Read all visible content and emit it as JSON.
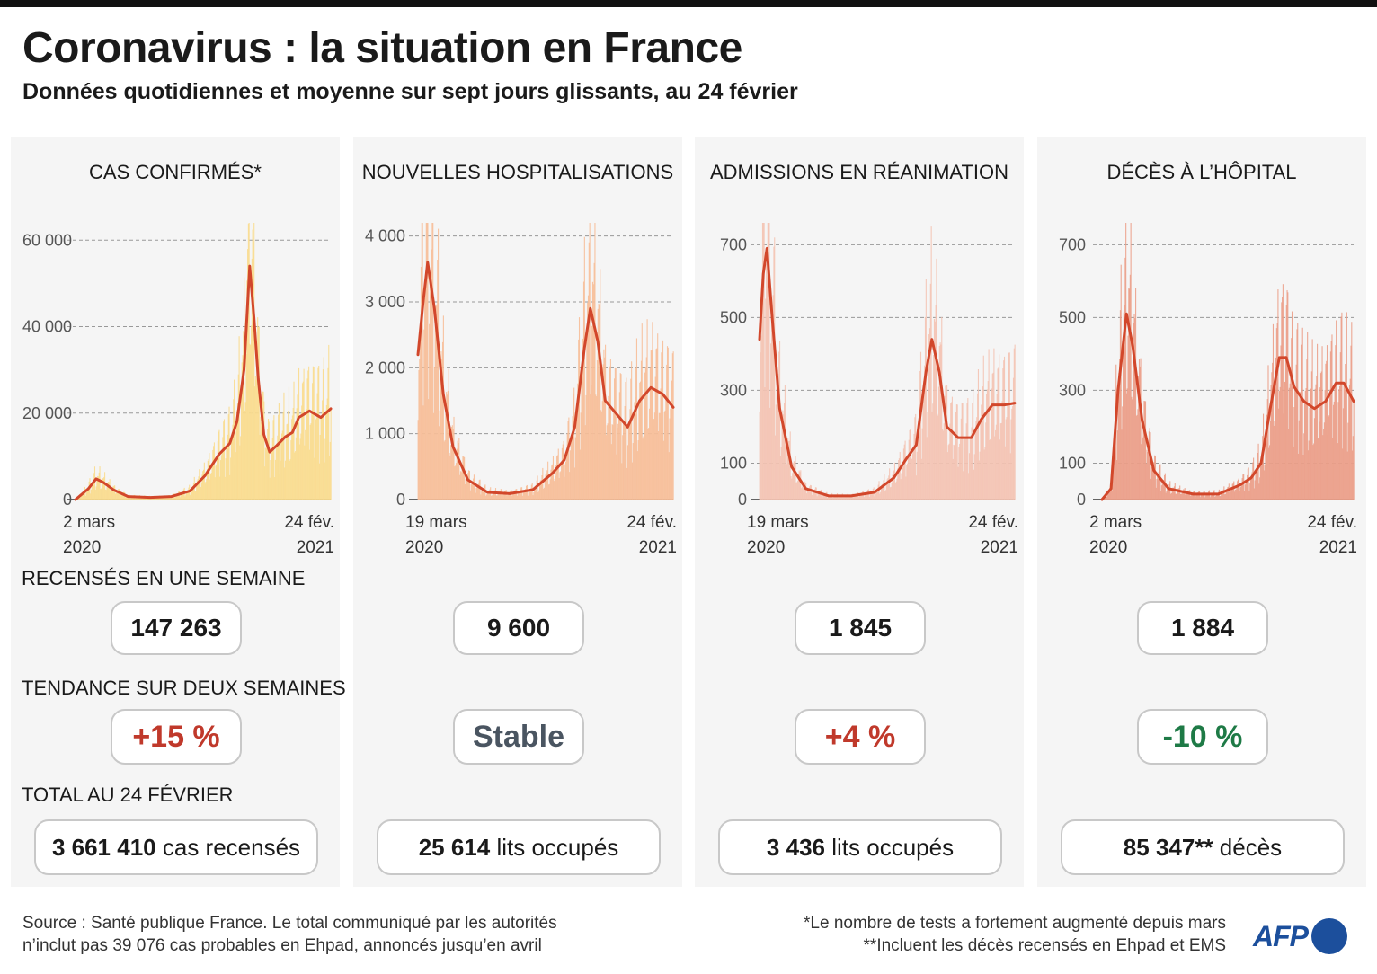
{
  "title": "Coronavirus : la situation en France",
  "subtitle": "Données quotidiennes et moyenne sur sept jours glissants, au 24 février",
  "labels": {
    "weekly": "RECENSÉS EN UNE SEMAINE",
    "trend": "TENDANCE SUR DEUX SEMAINES",
    "total": "TOTAL AU 24 FÉVRIER"
  },
  "colors": {
    "line": "#d2472b",
    "up": "#c0392b",
    "stable": "#4a5561",
    "down": "#1e7a46"
  },
  "panels": [
    {
      "title": "CAS CONFIRMÉS*",
      "weekly": "147 263",
      "trend": "+15 %",
      "trend_type": "up",
      "total_value": "3 661 410",
      "total_unit": "cas recensés",
      "start_date": [
        "2 mars",
        "2020"
      ],
      "end_date": [
        "24 fév.",
        "2021"
      ]
    },
    {
      "title": "NOUVELLES HOSPITALISATIONS",
      "weekly": "9 600",
      "trend": "Stable",
      "trend_type": "stable",
      "total_value": "25 614",
      "total_unit": "lits occupés",
      "start_date": [
        "19 mars",
        "2020"
      ],
      "end_date": [
        "24 fév.",
        "2021"
      ]
    },
    {
      "title": "ADMISSIONS EN RÉANIMATION",
      "weekly": "1 845",
      "trend": "+4 %",
      "trend_type": "up",
      "total_value": "3 436",
      "total_unit": "lits occupés",
      "start_date": [
        "19 mars",
        "2020"
      ],
      "end_date": [
        "24 fév.",
        "2021"
      ]
    },
    {
      "title": "DÉCÈS À L’HÔPITAL",
      "weekly": "1 884",
      "trend": "-10 %",
      "trend_type": "down",
      "total_value": "85 347**",
      "total_unit": "décès",
      "start_date": [
        "2 mars",
        "2020"
      ],
      "end_date": [
        "24 fév.",
        "2021"
      ]
    }
  ],
  "footer": {
    "source_line1": "Source : Santé publique France. Le total communiqué par les autorités",
    "source_line2": "n’inclut pas 39 076 cas probables en Ehpad, annoncés jusqu’en avril",
    "note_line1": "*Le nombre de tests a fortement augmenté depuis mars",
    "note_line2": "**Incluent les décès recensés en Ehpad et EMS",
    "logo": "AFP"
  },
  "chart_data": [
    {
      "type": "area",
      "title": "CAS CONFIRMÉS*",
      "x_start": "2020-03-02",
      "x_end": "2021-02-24",
      "xlabels": [
        "2 mars 2020",
        "24 fév. 2021"
      ],
      "yticks": [
        0,
        20000,
        40000,
        60000
      ],
      "ytick_labels": [
        "0",
        "20 000",
        "40 000",
        "60 000"
      ],
      "ylim": [
        0,
        64000
      ],
      "fill": "#f9dc8e",
      "series": [
        {
          "x": "2020-03-02",
          "y": 0
        },
        {
          "x": "2020-03-20",
          "y": 2500
        },
        {
          "x": "2020-03-31",
          "y": 4800
        },
        {
          "x": "2020-04-10",
          "y": 4000
        },
        {
          "x": "2020-04-25",
          "y": 2200
        },
        {
          "x": "2020-05-15",
          "y": 700
        },
        {
          "x": "2020-06-15",
          "y": 500
        },
        {
          "x": "2020-07-15",
          "y": 700
        },
        {
          "x": "2020-08-10",
          "y": 2000
        },
        {
          "x": "2020-08-31",
          "y": 5500
        },
        {
          "x": "2020-09-20",
          "y": 10500
        },
        {
          "x": "2020-10-05",
          "y": 13000
        },
        {
          "x": "2020-10-15",
          "y": 18000
        },
        {
          "x": "2020-10-25",
          "y": 30000
        },
        {
          "x": "2020-11-02",
          "y": 54000
        },
        {
          "x": "2020-11-08",
          "y": 42000
        },
        {
          "x": "2020-11-14",
          "y": 28000
        },
        {
          "x": "2020-11-22",
          "y": 15000
        },
        {
          "x": "2020-11-30",
          "y": 11000
        },
        {
          "x": "2020-12-10",
          "y": 12500
        },
        {
          "x": "2020-12-22",
          "y": 14500
        },
        {
          "x": "2021-01-01",
          "y": 15500
        },
        {
          "x": "2021-01-10",
          "y": 19000
        },
        {
          "x": "2021-01-25",
          "y": 20500
        },
        {
          "x": "2021-02-10",
          "y": 19000
        },
        {
          "x": "2021-02-24",
          "y": 21000
        }
      ]
    },
    {
      "type": "area",
      "title": "NOUVELLES HOSPITALISATIONS",
      "x_start": "2020-03-19",
      "x_end": "2021-02-24",
      "xlabels": [
        "19 mars 2020",
        "24 fév. 2021"
      ],
      "yticks": [
        0,
        1000,
        2000,
        3000,
        4000
      ],
      "ytick_labels": [
        "0",
        "1 000",
        "2 000",
        "3 000",
        "4 000"
      ],
      "ylim": [
        0,
        4200
      ],
      "fill": "#f7be98",
      "series": [
        {
          "x": "2020-03-19",
          "y": 2200
        },
        {
          "x": "2020-03-26",
          "y": 3000
        },
        {
          "x": "2020-04-01",
          "y": 3600
        },
        {
          "x": "2020-04-10",
          "y": 2900
        },
        {
          "x": "2020-04-22",
          "y": 1600
        },
        {
          "x": "2020-05-05",
          "y": 800
        },
        {
          "x": "2020-05-25",
          "y": 300
        },
        {
          "x": "2020-06-20",
          "y": 110
        },
        {
          "x": "2020-07-20",
          "y": 90
        },
        {
          "x": "2020-08-20",
          "y": 150
        },
        {
          "x": "2020-09-15",
          "y": 400
        },
        {
          "x": "2020-10-01",
          "y": 600
        },
        {
          "x": "2020-10-15",
          "y": 1100
        },
        {
          "x": "2020-10-28",
          "y": 2300
        },
        {
          "x": "2020-11-05",
          "y": 2900
        },
        {
          "x": "2020-11-15",
          "y": 2400
        },
        {
          "x": "2020-11-25",
          "y": 1500
        },
        {
          "x": "2020-12-10",
          "y": 1300
        },
        {
          "x": "2020-12-25",
          "y": 1100
        },
        {
          "x": "2021-01-10",
          "y": 1500
        },
        {
          "x": "2021-01-25",
          "y": 1700
        },
        {
          "x": "2021-02-10",
          "y": 1600
        },
        {
          "x": "2021-02-24",
          "y": 1400
        }
      ]
    },
    {
      "type": "area",
      "title": "ADMISSIONS EN RÉANIMATION",
      "x_start": "2020-03-19",
      "x_end": "2021-02-24",
      "xlabels": [
        "19 mars 2020",
        "24 fév. 2021"
      ],
      "yticks": [
        0,
        100,
        300,
        500,
        700
      ],
      "ytick_labels": [
        "0",
        "100",
        "300",
        "500",
        "700"
      ],
      "ylim": [
        0,
        760
      ],
      "fill": "#f4c3b3",
      "series": [
        {
          "x": "2020-03-19",
          "y": 440
        },
        {
          "x": "2020-03-24",
          "y": 620
        },
        {
          "x": "2020-03-29",
          "y": 690
        },
        {
          "x": "2020-04-05",
          "y": 500
        },
        {
          "x": "2020-04-15",
          "y": 250
        },
        {
          "x": "2020-05-01",
          "y": 90
        },
        {
          "x": "2020-05-20",
          "y": 30
        },
        {
          "x": "2020-06-20",
          "y": 10
        },
        {
          "x": "2020-07-20",
          "y": 10
        },
        {
          "x": "2020-08-20",
          "y": 20
        },
        {
          "x": "2020-09-15",
          "y": 60
        },
        {
          "x": "2020-10-01",
          "y": 110
        },
        {
          "x": "2020-10-15",
          "y": 150
        },
        {
          "x": "2020-10-28",
          "y": 350
        },
        {
          "x": "2020-11-05",
          "y": 440
        },
        {
          "x": "2020-11-15",
          "y": 350
        },
        {
          "x": "2020-11-25",
          "y": 200
        },
        {
          "x": "2020-12-10",
          "y": 170
        },
        {
          "x": "2020-12-28",
          "y": 170
        },
        {
          "x": "2021-01-10",
          "y": 220
        },
        {
          "x": "2021-01-25",
          "y": 260
        },
        {
          "x": "2021-02-10",
          "y": 260
        },
        {
          "x": "2021-02-24",
          "y": 265
        }
      ]
    },
    {
      "type": "area",
      "title": "DÉCÈS À L’HÔPITAL",
      "x_start": "2020-03-02",
      "x_end": "2021-02-24",
      "xlabels": [
        "2 mars 2020",
        "24 fév. 2021"
      ],
      "yticks": [
        0,
        100,
        300,
        500,
        700
      ],
      "ytick_labels": [
        "0",
        "100",
        "300",
        "500",
        "700"
      ],
      "ylim": [
        0,
        760
      ],
      "fill": "#eb9f88",
      "series": [
        {
          "x": "2020-03-02",
          "y": 0
        },
        {
          "x": "2020-03-15",
          "y": 30
        },
        {
          "x": "2020-03-25",
          "y": 300
        },
        {
          "x": "2020-04-06",
          "y": 510
        },
        {
          "x": "2020-04-15",
          "y": 420
        },
        {
          "x": "2020-04-28",
          "y": 220
        },
        {
          "x": "2020-05-15",
          "y": 80
        },
        {
          "x": "2020-06-05",
          "y": 30
        },
        {
          "x": "2020-07-10",
          "y": 15
        },
        {
          "x": "2020-08-15",
          "y": 15
        },
        {
          "x": "2020-09-15",
          "y": 40
        },
        {
          "x": "2020-10-01",
          "y": 60
        },
        {
          "x": "2020-10-15",
          "y": 100
        },
        {
          "x": "2020-10-28",
          "y": 250
        },
        {
          "x": "2020-11-10",
          "y": 390
        },
        {
          "x": "2020-11-20",
          "y": 390
        },
        {
          "x": "2020-12-01",
          "y": 310
        },
        {
          "x": "2020-12-15",
          "y": 270
        },
        {
          "x": "2020-12-30",
          "y": 250
        },
        {
          "x": "2021-01-15",
          "y": 270
        },
        {
          "x": "2021-01-30",
          "y": 320
        },
        {
          "x": "2021-02-10",
          "y": 320
        },
        {
          "x": "2021-02-24",
          "y": 270
        }
      ]
    }
  ]
}
